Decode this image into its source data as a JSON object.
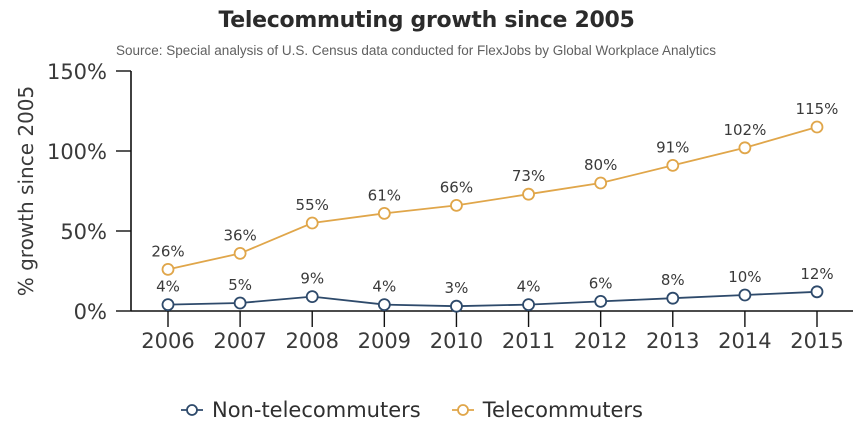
{
  "chart_data": {
    "type": "line",
    "title": "Telecommuting growth since 2005",
    "subtitle": "Source: Special analysis of U.S. Census data conducted for FlexJobs by Global Workplace Analytics",
    "xlabel": "",
    "ylabel": "% growth since 2005",
    "ylim": [
      0,
      150
    ],
    "yticks": [
      0,
      50,
      100,
      150
    ],
    "ytick_labels": [
      "0%",
      "50%",
      "100%",
      "150%"
    ],
    "x": [
      "2006",
      "2007",
      "2008",
      "2009",
      "2010",
      "2011",
      "2012",
      "2013",
      "2014",
      "2015"
    ],
    "grid": false,
    "legend_position": "bottom-center",
    "series": [
      {
        "name": "Non-telecommuters",
        "color": "#2e4a6b",
        "values": [
          4,
          5,
          9,
          4,
          3,
          4,
          6,
          8,
          10,
          12
        ],
        "labels": [
          "4%",
          "5%",
          "9%",
          "4%",
          "3%",
          "4%",
          "6%",
          "8%",
          "10%",
          "12%"
        ]
      },
      {
        "name": "Telecommuters",
        "color": "#e0a64a",
        "values": [
          26,
          36,
          55,
          61,
          66,
          73,
          80,
          91,
          102,
          115
        ],
        "labels": [
          "26%",
          "36%",
          "55%",
          "61%",
          "66%",
          "73%",
          "80%",
          "91%",
          "102%",
          "115%"
        ]
      }
    ]
  }
}
